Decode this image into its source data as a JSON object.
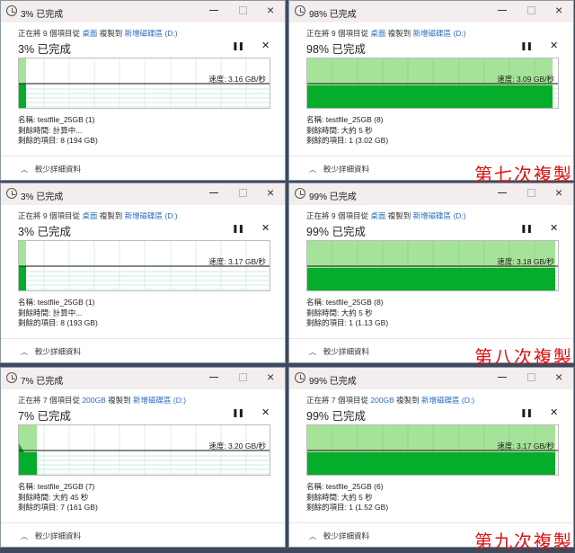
{
  "dialogs": [
    {
      "title": "3% 已完成",
      "copy_prefix": "正在將 9 個項目從 ",
      "source": "桌面",
      "copy_mid": " 複製到 ",
      "dest": "新增磁碟區 (D:)",
      "percent_label": "3% 已完成",
      "progress": 3,
      "speed": "速度: 3.16 GB/秒",
      "name": "名稱: testfile_25GB (1)",
      "time_left": "剩餘時間: 計算中...",
      "items_left": "剩餘的項目: 8 (194 GB)",
      "less_details": "較少詳細資料",
      "note": ""
    },
    {
      "title": "98% 已完成",
      "copy_prefix": "正在將 9 個項目從 ",
      "source": "桌面",
      "copy_mid": " 複製到 ",
      "dest": "新增磁碟區 (D:)",
      "percent_label": "98% 已完成",
      "progress": 98,
      "speed": "速度: 3.09 GB/秒",
      "name": "名稱: testfile_25GB (8)",
      "time_left": "剩餘時間: 大約 5 秒",
      "items_left": "剩餘的項目: 1 (3.02 GB)",
      "less_details": "較少詳細資料",
      "note": "第七次複製"
    },
    {
      "title": "3% 已完成",
      "copy_prefix": "正在將 9 個項目從 ",
      "source": "桌面",
      "copy_mid": " 複製到 ",
      "dest": "新增磁碟區 (D:)",
      "percent_label": "3% 已完成",
      "progress": 3,
      "speed": "速度: 3.17 GB/秒",
      "name": "名稱: testfile_25GB (1)",
      "time_left": "剩餘時間: 計算中...",
      "items_left": "剩餘的項目: 8 (193 GB)",
      "less_details": "較少詳細資料",
      "note": ""
    },
    {
      "title": "99% 已完成",
      "copy_prefix": "正在將 9 個項目從 ",
      "source": "桌面",
      "copy_mid": " 複製到 ",
      "dest": "新增磁碟區 (D:)",
      "percent_label": "99% 已完成",
      "progress": 99,
      "speed": "速度: 3.18 GB/秒",
      "name": "名稱: testfile_25GB (8)",
      "time_left": "剩餘時間: 大約 5 秒",
      "items_left": "剩餘的項目: 1 (1.13 GB)",
      "less_details": "較少詳細資料",
      "note": "第八次複製"
    },
    {
      "title": "7% 已完成",
      "copy_prefix": "正在將 7 個項目從 ",
      "source": "200GB",
      "copy_mid": " 複製到 ",
      "dest": "新增磁碟區 (D:)",
      "percent_label": "7% 已完成",
      "progress": 7,
      "speed": "速度: 3.20 GB/秒",
      "name": "名稱: testfile_25GB (7)",
      "time_left": "剩餘時間: 大約 45 秒",
      "items_left": "剩餘的項目: 7 (161 GB)",
      "less_details": "較少詳細資料",
      "note": ""
    },
    {
      "title": "99% 已完成",
      "copy_prefix": "正在將 7 個項目從 ",
      "source": "200GB",
      "copy_mid": " 複製到 ",
      "dest": "新增磁碟區 (D:)",
      "percent_label": "99% 已完成",
      "progress": 99,
      "speed": "速度: 3.17 GB/秒",
      "name": "名稱: testfile_25GB (6)",
      "time_left": "剩餘時間: 大約 5 秒",
      "items_left": "剩餘的項目: 1 (1.52 GB)",
      "less_details": "較少詳細資料",
      "note": "第九次複製"
    }
  ],
  "colors": {
    "progress_light": "#a6e39a",
    "progress_dark": "#06ad2a",
    "note": "#d11111",
    "link": "#2a6cc4"
  }
}
